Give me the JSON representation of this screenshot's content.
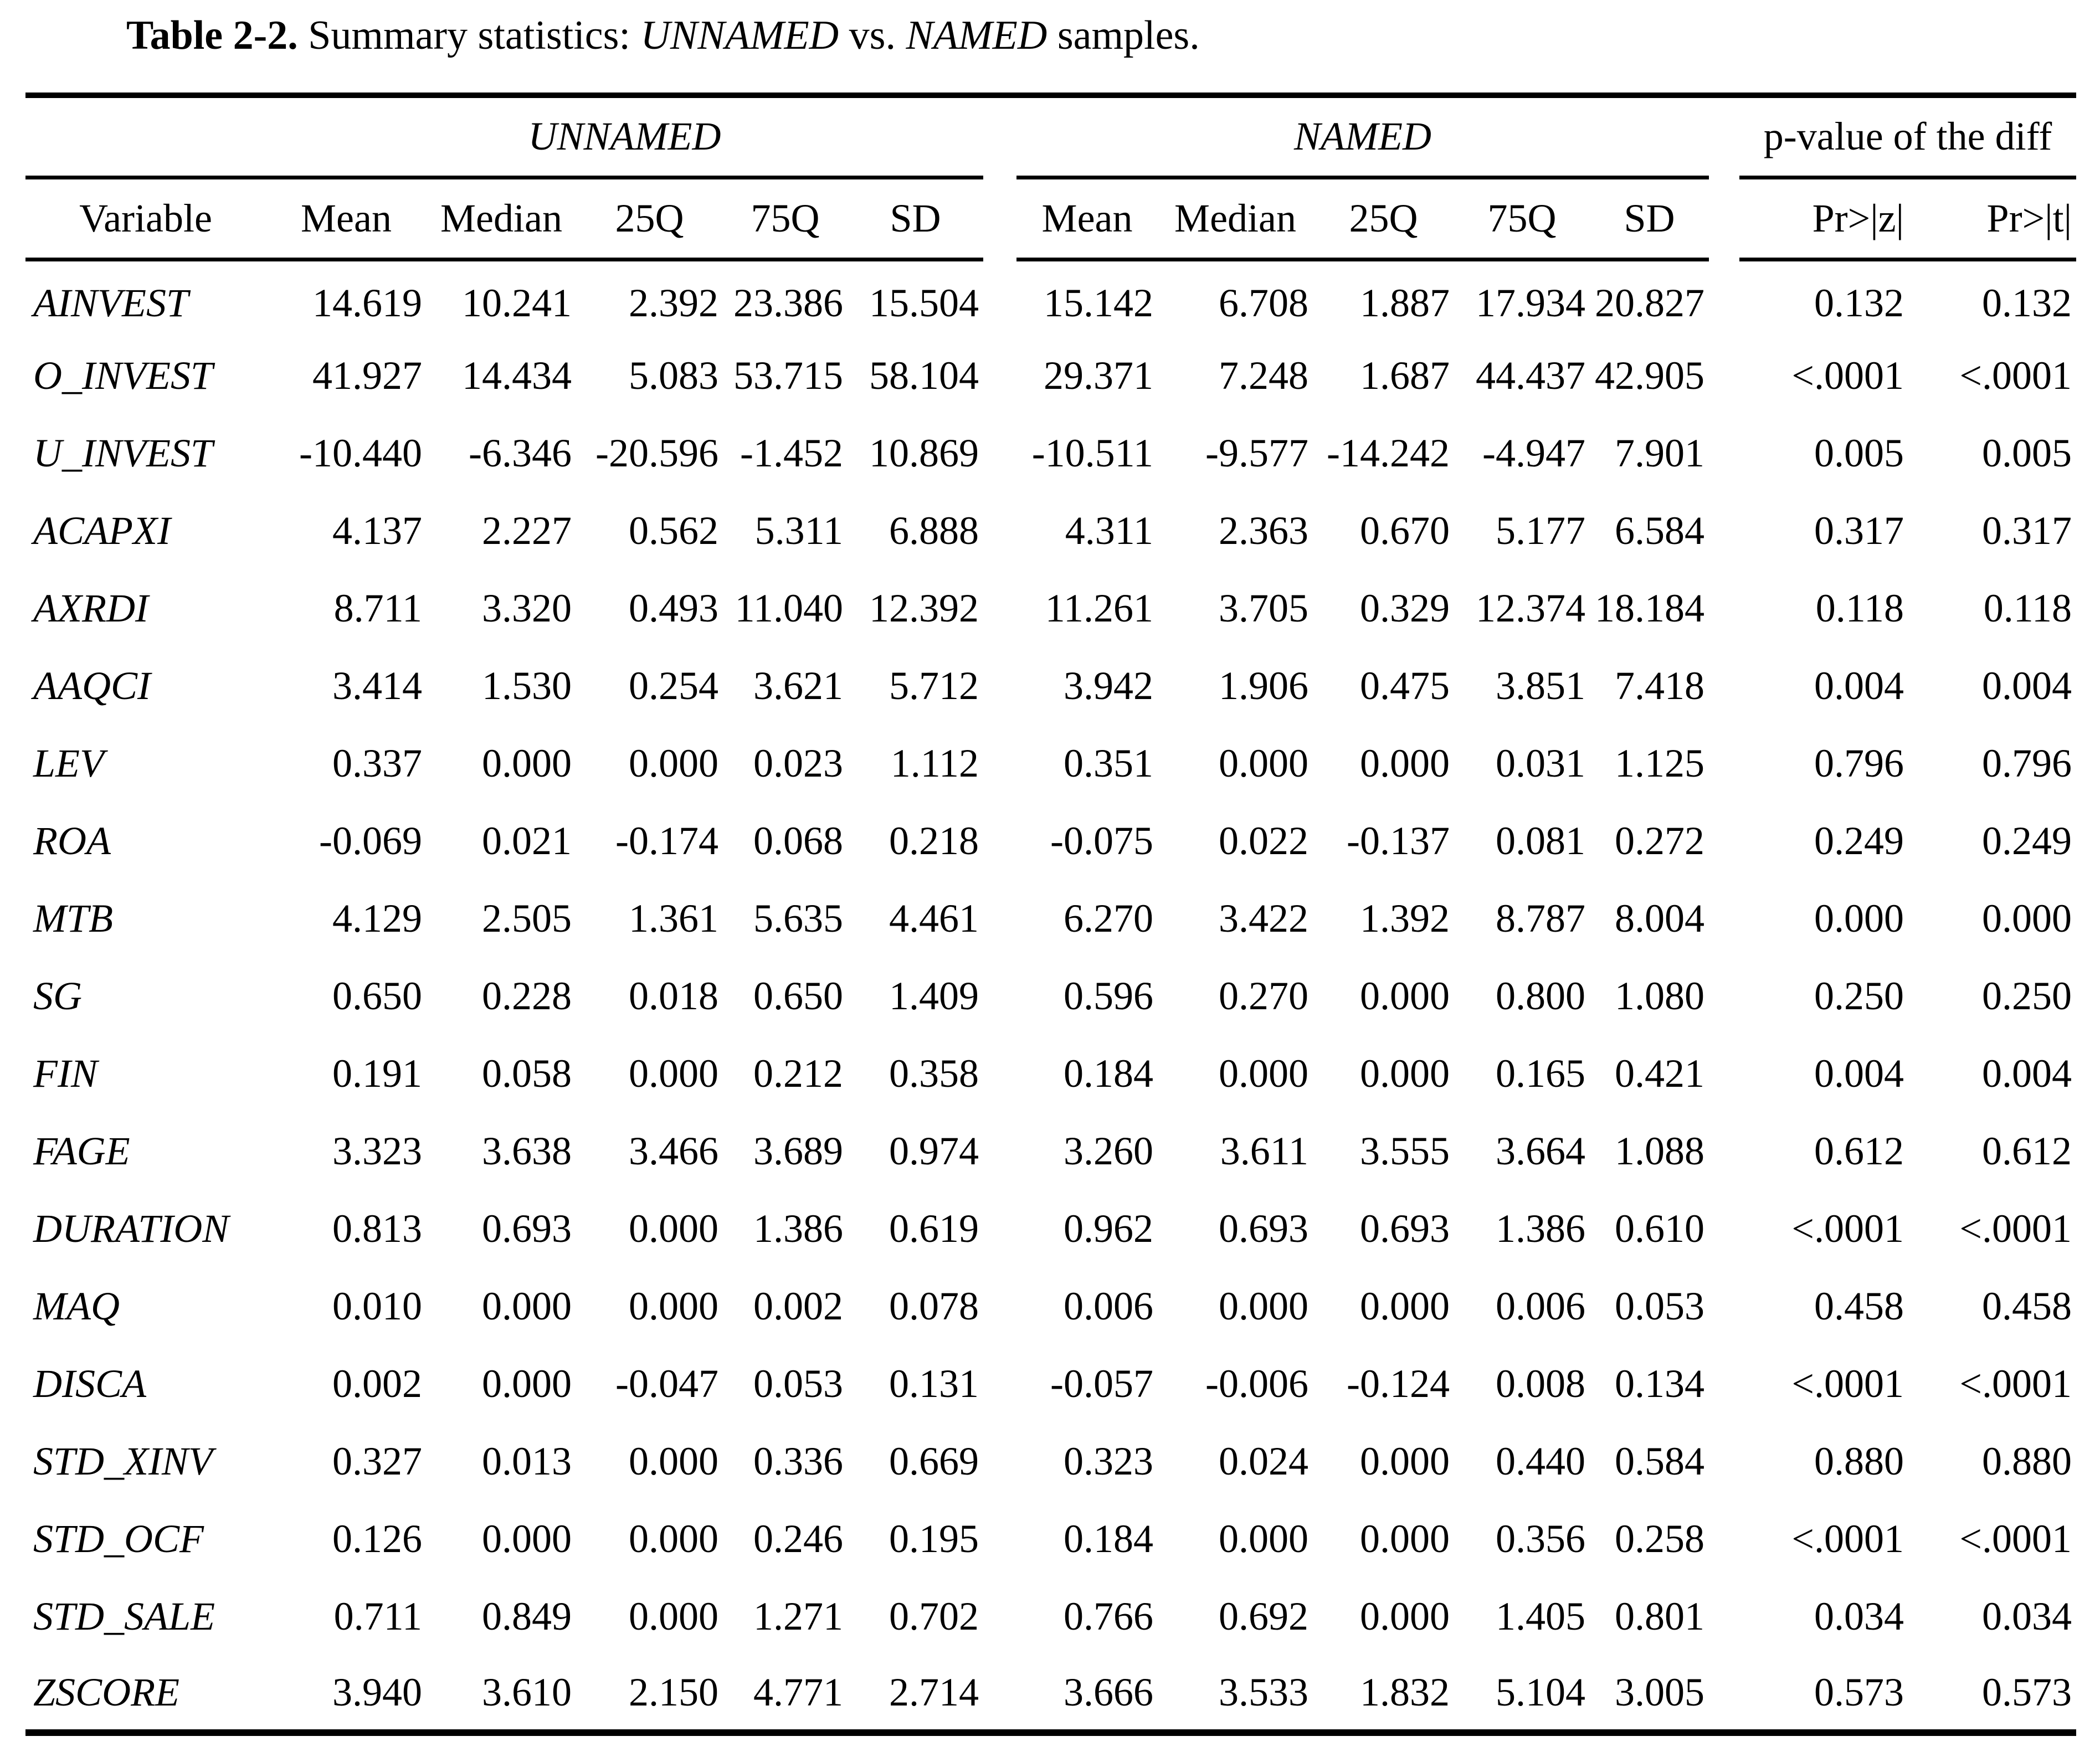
{
  "title": {
    "label": "Table 2-2.",
    "prefix": " Summary statistics: ",
    "sample1": "UNNAMED",
    "middle": " vs. ",
    "sample2": "NAMED",
    "suffix": " samples."
  },
  "table": {
    "groups": {
      "unnamed": "UNNAMED",
      "named": "NAMED",
      "pvalue": "p-value of the diff"
    },
    "columns": {
      "variable": "Variable",
      "stats": [
        "Mean",
        "Median",
        "25Q",
        "75Q",
        "SD"
      ],
      "pz": "Pr>|z|",
      "pt": "Pr>|t|"
    }
  },
  "rows": [
    {
      "variable": "AINVEST",
      "unnamed": [
        "14.619",
        "10.241",
        "2.392",
        "23.386",
        "15.504"
      ],
      "named": [
        "15.142",
        "6.708",
        "1.887",
        "17.934",
        "20.827"
      ],
      "pz": "0.132",
      "pt": "0.132"
    },
    {
      "variable": "O_INVEST",
      "unnamed": [
        "41.927",
        "14.434",
        "5.083",
        "53.715",
        "58.104"
      ],
      "named": [
        "29.371",
        "7.248",
        "1.687",
        "44.437",
        "42.905"
      ],
      "pz": "<.0001",
      "pt": "<.0001"
    },
    {
      "variable": "U_INVEST",
      "unnamed": [
        "-10.440",
        "-6.346",
        "-20.596",
        "-1.452",
        "10.869"
      ],
      "named": [
        "-10.511",
        "-9.577",
        "-14.242",
        "-4.947",
        "7.901"
      ],
      "pz": "0.005",
      "pt": "0.005"
    },
    {
      "variable": "ACAPXI",
      "unnamed": [
        "4.137",
        "2.227",
        "0.562",
        "5.311",
        "6.888"
      ],
      "named": [
        "4.311",
        "2.363",
        "0.670",
        "5.177",
        "6.584"
      ],
      "pz": "0.317",
      "pt": "0.317"
    },
    {
      "variable": "AXRDI",
      "unnamed": [
        "8.711",
        "3.320",
        "0.493",
        "11.040",
        "12.392"
      ],
      "named": [
        "11.261",
        "3.705",
        "0.329",
        "12.374",
        "18.184"
      ],
      "pz": "0.118",
      "pt": "0.118"
    },
    {
      "variable": "AAQCI",
      "unnamed": [
        "3.414",
        "1.530",
        "0.254",
        "3.621",
        "5.712"
      ],
      "named": [
        "3.942",
        "1.906",
        "0.475",
        "3.851",
        "7.418"
      ],
      "pz": "0.004",
      "pt": "0.004"
    },
    {
      "variable": "LEV",
      "unnamed": [
        "0.337",
        "0.000",
        "0.000",
        "0.023",
        "1.112"
      ],
      "named": [
        "0.351",
        "0.000",
        "0.000",
        "0.031",
        "1.125"
      ],
      "pz": "0.796",
      "pt": "0.796"
    },
    {
      "variable": "ROA",
      "unnamed": [
        "-0.069",
        "0.021",
        "-0.174",
        "0.068",
        "0.218"
      ],
      "named": [
        "-0.075",
        "0.022",
        "-0.137",
        "0.081",
        "0.272"
      ],
      "pz": "0.249",
      "pt": "0.249"
    },
    {
      "variable": "MTB",
      "unnamed": [
        "4.129",
        "2.505",
        "1.361",
        "5.635",
        "4.461"
      ],
      "named": [
        "6.270",
        "3.422",
        "1.392",
        "8.787",
        "8.004"
      ],
      "pz": "0.000",
      "pt": "0.000"
    },
    {
      "variable": "SG",
      "unnamed": [
        "0.650",
        "0.228",
        "0.018",
        "0.650",
        "1.409"
      ],
      "named": [
        "0.596",
        "0.270",
        "0.000",
        "0.800",
        "1.080"
      ],
      "pz": "0.250",
      "pt": "0.250"
    },
    {
      "variable": "FIN",
      "unnamed": [
        "0.191",
        "0.058",
        "0.000",
        "0.212",
        "0.358"
      ],
      "named": [
        "0.184",
        "0.000",
        "0.000",
        "0.165",
        "0.421"
      ],
      "pz": "0.004",
      "pt": "0.004"
    },
    {
      "variable": "FAGE",
      "unnamed": [
        "3.323",
        "3.638",
        "3.466",
        "3.689",
        "0.974"
      ],
      "named": [
        "3.260",
        "3.611",
        "3.555",
        "3.664",
        "1.088"
      ],
      "pz": "0.612",
      "pt": "0.612"
    },
    {
      "variable": "DURATION",
      "unnamed": [
        "0.813",
        "0.693",
        "0.000",
        "1.386",
        "0.619"
      ],
      "named": [
        "0.962",
        "0.693",
        "0.693",
        "1.386",
        "0.610"
      ],
      "pz": "<.0001",
      "pt": "<.0001"
    },
    {
      "variable": "MAQ",
      "unnamed": [
        "0.010",
        "0.000",
        "0.000",
        "0.002",
        "0.078"
      ],
      "named": [
        "0.006",
        "0.000",
        "0.000",
        "0.006",
        "0.053"
      ],
      "pz": "0.458",
      "pt": "0.458"
    },
    {
      "variable": "DISCA",
      "unnamed": [
        "0.002",
        "0.000",
        "-0.047",
        "0.053",
        "0.131"
      ],
      "named": [
        "-0.057",
        "-0.006",
        "-0.124",
        "0.008",
        "0.134"
      ],
      "pz": "<.0001",
      "pt": "<.0001"
    },
    {
      "variable": "STD_XINV",
      "unnamed": [
        "0.327",
        "0.013",
        "0.000",
        "0.336",
        "0.669"
      ],
      "named": [
        "0.323",
        "0.024",
        "0.000",
        "0.440",
        "0.584"
      ],
      "pz": "0.880",
      "pt": "0.880"
    },
    {
      "variable": "STD_OCF",
      "unnamed": [
        "0.126",
        "0.000",
        "0.000",
        "0.246",
        "0.195"
      ],
      "named": [
        "0.184",
        "0.000",
        "0.000",
        "0.356",
        "0.258"
      ],
      "pz": "<.0001",
      "pt": "<.0001"
    },
    {
      "variable": "STD_SALE",
      "unnamed": [
        "0.711",
        "0.849",
        "0.000",
        "1.271",
        "0.702"
      ],
      "named": [
        "0.766",
        "0.692",
        "0.000",
        "1.405",
        "0.801"
      ],
      "pz": "0.034",
      "pt": "0.034"
    },
    {
      "variable": "ZSCORE",
      "unnamed": [
        "3.940",
        "3.610",
        "2.150",
        "4.771",
        "2.714"
      ],
      "named": [
        "3.666",
        "3.533",
        "1.832",
        "5.104",
        "3.005"
      ],
      "pz": "0.573",
      "pt": "0.573"
    }
  ],
  "colors": {
    "background": "#ffffff",
    "text": "#000000",
    "rule": "#000000"
  }
}
